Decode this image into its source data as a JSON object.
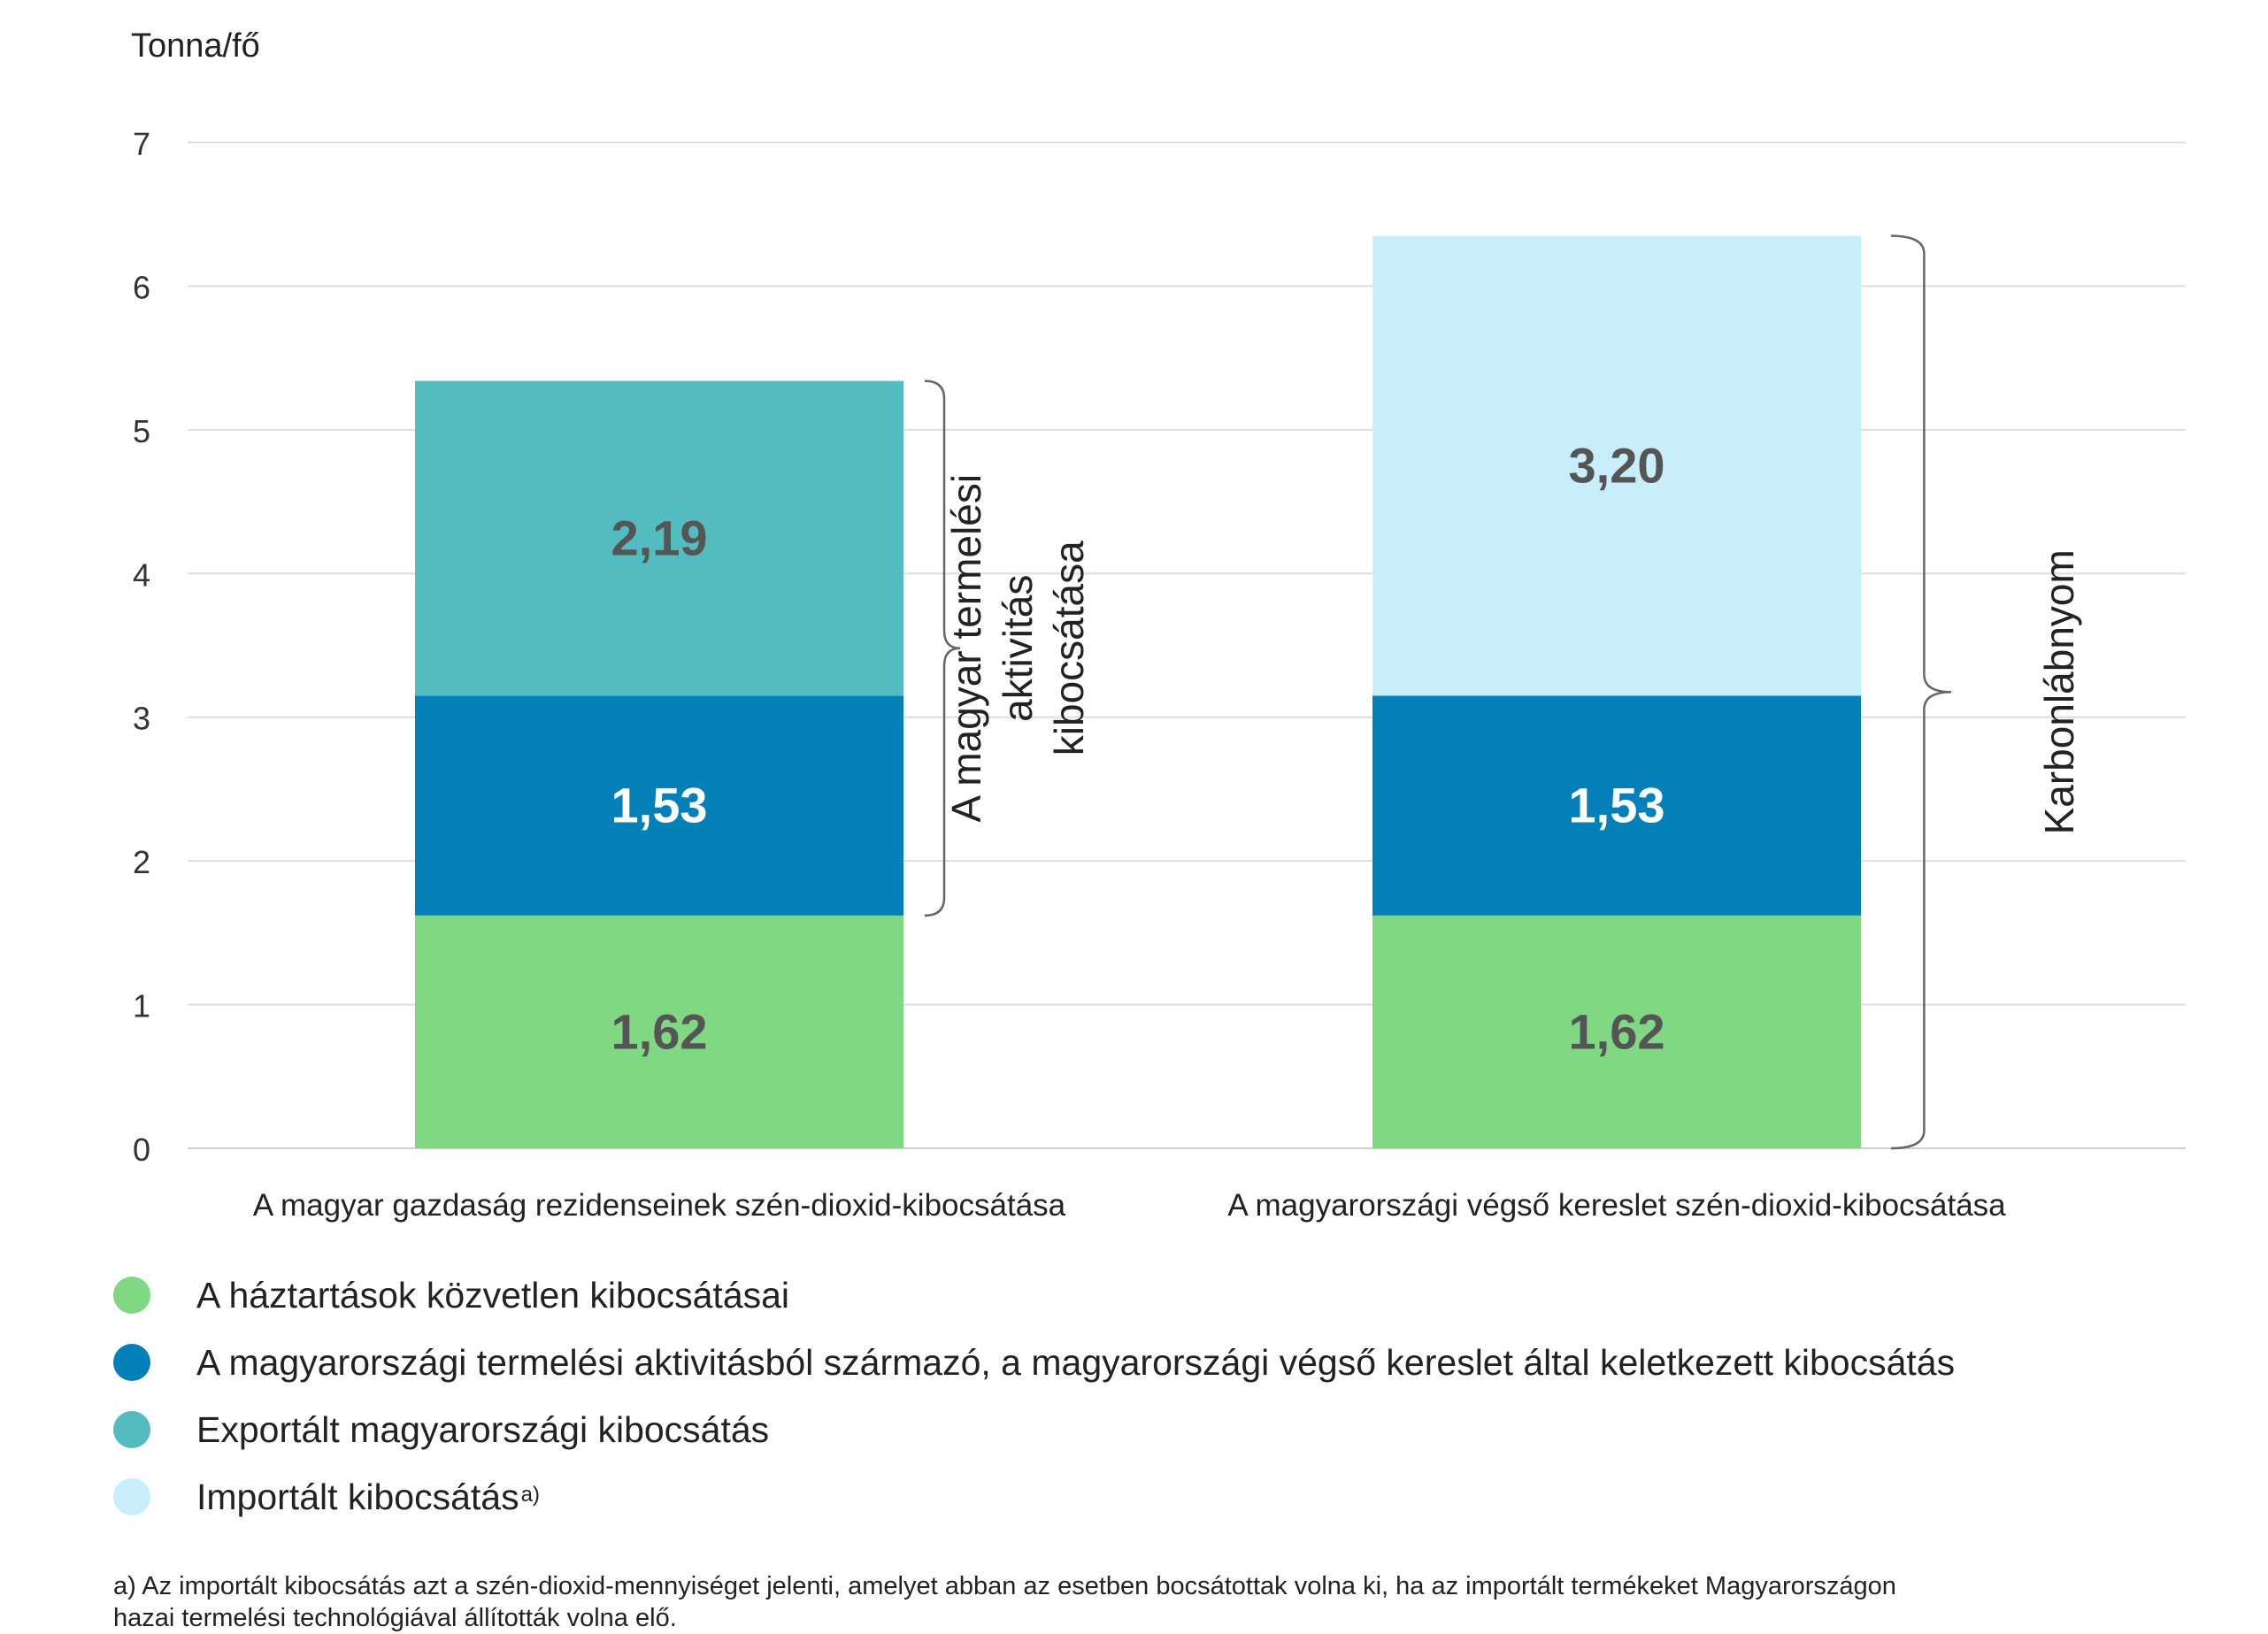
{
  "chart_data": {
    "type": "bar",
    "stacked": true,
    "ylabel": "Tonna/fő",
    "ylim": [
      0,
      7
    ],
    "yticks": [
      "0",
      "1",
      "2",
      "3",
      "4",
      "5",
      "6",
      "7"
    ],
    "grid": true,
    "categories": [
      "A magyar gazdaság rezidenseinek szén-dioxid-kibocsátása",
      "A magyarországi végső kereslet szén-dioxid-kibocsátása"
    ],
    "series": [
      {
        "name": "A háztartások közvetlen kibocsátásai",
        "values": [
          1.62,
          1.62
        ],
        "labels": [
          "1,62",
          "1,62"
        ],
        "color": "#80d883",
        "label_color": "#555555"
      },
      {
        "name": "A magyarországi termelési aktivitásból származó, a magyarországi végső kereslet által keletkezett kibocsátás",
        "values": [
          1.53,
          1.53
        ],
        "labels": [
          "1,53",
          "1,53"
        ],
        "color": "#0380b7",
        "label_color": "#ffffff"
      },
      {
        "name": "Exportált magyarországi kibocsátás",
        "values": [
          2.19,
          0
        ],
        "labels": [
          "2,19",
          ""
        ],
        "color": "#52bcc0",
        "label_color": "#555555"
      },
      {
        "name": "Importált kibocsátás",
        "values": [
          0,
          3.2
        ],
        "labels": [
          "",
          "3,20"
        ],
        "color": "#c9eefb",
        "label_color": "#555555"
      }
    ],
    "annotations": [
      {
        "text_lines": [
          "A magyar termelési",
          "aktivitás",
          "kibocsátása"
        ],
        "from": 1.62,
        "to": 5.34,
        "category_index": 0
      },
      {
        "text_lines": [
          "Karbonlábnyom"
        ],
        "from": 0,
        "to": 6.35,
        "category_index": 1
      }
    ],
    "legend_position": "bottom"
  },
  "legend": {
    "items": [
      {
        "label": "A háztartások közvetlen kibocsátásai",
        "sup": "",
        "color": "#80d883"
      },
      {
        "label": "A magyarországi termelési aktivitásból származó, a magyarországi végső kereslet által keletkezett kibocsátás",
        "sup": "",
        "color": "#0380b7"
      },
      {
        "label": "Exportált magyarországi kibocsátás",
        "sup": "",
        "color": "#52bcc0"
      },
      {
        "label": "Importált kibocsátás",
        "sup": "a)",
        "color": "#c9eefb"
      }
    ]
  },
  "footnote": {
    "line1": "a) Az importált kibocsátás azt a szén-dioxid-mennyiséget jelenti, amelyet abban az esetben bocsátottak volna ki, ha az importált termékeket Magyarországon",
    "line2": "hazai termelési technológiával állították volna elő."
  }
}
